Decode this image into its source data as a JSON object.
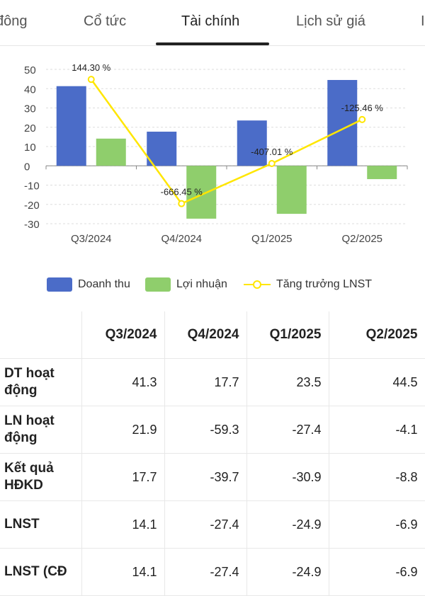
{
  "tabs": [
    {
      "label": "đông"
    },
    {
      "label": "Cổ tức"
    },
    {
      "label": "Tài chính"
    },
    {
      "label": "Lịch sử giá"
    },
    {
      "label": "I"
    }
  ],
  "colors": {
    "revenue": "#4b6cc8",
    "profit": "#8fce6c",
    "growth": "#ffe600",
    "grid": "#dddddd"
  },
  "legend": {
    "revenue": "Doanh thu",
    "profit": "Lợi nhuận",
    "growth": "Tăng trưởng LNST"
  },
  "chart_data": {
    "type": "bar",
    "categories": [
      "Q3/2024",
      "Q4/2024",
      "Q1/2025",
      "Q2/2025"
    ],
    "series": [
      {
        "name": "Doanh thu",
        "type": "bar",
        "values": [
          41.3,
          17.7,
          23.5,
          44.5
        ]
      },
      {
        "name": "Lợi nhuận",
        "type": "bar",
        "values": [
          14.1,
          -27.4,
          -24.9,
          -6.9
        ]
      },
      {
        "name": "Tăng trưởng LNST",
        "type": "line",
        "values": [
          44.8,
          -19.6,
          1.2,
          24.0
        ],
        "labels": [
          "144.30 %",
          "-666.45 %",
          "-407.01 %",
          "-125.46 %"
        ]
      }
    ],
    "yticks": [
      50,
      40,
      30,
      20,
      10,
      0,
      -10,
      -20,
      -30
    ],
    "ylim": [
      -30,
      50
    ],
    "grid": true,
    "legend_position": "bottom"
  },
  "table": {
    "headers": [
      "",
      "Q3/2024",
      "Q4/2024",
      "Q1/2025",
      "Q2/2025"
    ],
    "rows": [
      {
        "label": "DT hoạt động",
        "values": [
          "41.3",
          "17.7",
          "23.5",
          "44.5"
        ]
      },
      {
        "label": "LN hoạt động",
        "values": [
          "21.9",
          "-59.3",
          "-27.4",
          "-4.1"
        ]
      },
      {
        "label": "Kết quả HĐKD",
        "values": [
          "17.7",
          "-39.7",
          "-30.9",
          "-8.8"
        ]
      },
      {
        "label": "LNST",
        "values": [
          "14.1",
          "-27.4",
          "-24.9",
          "-6.9"
        ]
      },
      {
        "label": "LNST (CĐ",
        "values": [
          "14.1",
          "-27.4",
          "-24.9",
          "-6.9"
        ]
      }
    ]
  }
}
